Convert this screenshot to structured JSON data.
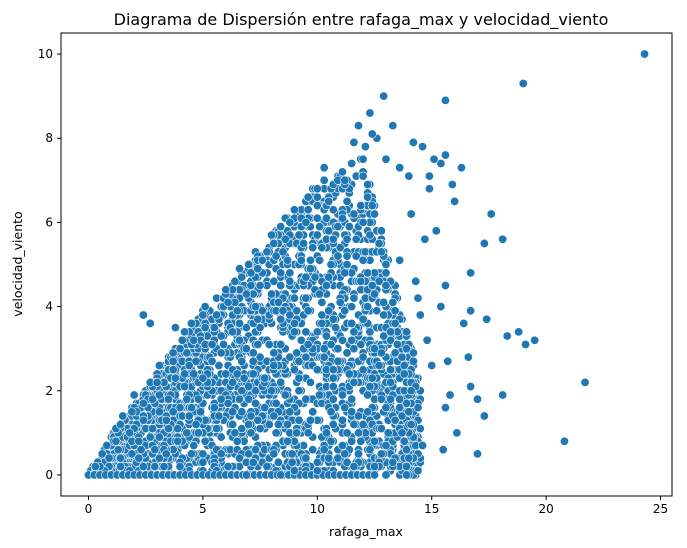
{
  "chart_data": {
    "type": "scatter",
    "title": "Diagrama de Dispersión entre rafaga_max y velocidad_viento",
    "xlabel": "rafaga_max",
    "ylabel": "velocidad_viento",
    "xlim": [
      -1.2,
      25.5
    ],
    "ylim": [
      -0.5,
      10.5
    ],
    "xticks": [
      "0",
      "5",
      "10",
      "15",
      "20",
      "25"
    ],
    "yticks": [
      "0",
      "2",
      "4",
      "6",
      "8",
      "10"
    ],
    "xtick_values": [
      0,
      5,
      10,
      15,
      20,
      25
    ],
    "ytick_values": [
      0,
      2,
      4,
      6,
      8,
      10
    ],
    "grid": false,
    "marker_color": "#1f77b4",
    "marker_edge_color": "#ffffff",
    "density_region": {
      "description": "dense cloud of points",
      "upper_edge": [
        [
          0,
          0
        ],
        [
          1.0,
          0.9
        ],
        [
          2.0,
          1.7
        ],
        [
          3.0,
          2.5
        ],
        [
          4.0,
          3.2
        ],
        [
          5.0,
          3.9
        ],
        [
          6.0,
          4.5
        ],
        [
          7.0,
          5.1
        ],
        [
          8.0,
          5.7
        ],
        [
          9.0,
          6.3
        ],
        [
          10.0,
          6.9
        ],
        [
          11.0,
          7.2
        ],
        [
          12.0,
          7.6
        ]
      ],
      "lower_edge": [
        [
          0,
          0
        ],
        [
          12.0,
          0.0
        ]
      ],
      "right_edge": [
        [
          12.0,
          7.6
        ],
        [
          13.0,
          7.0
        ],
        [
          13.5,
          6.0
        ],
        [
          14.0,
          5.0
        ],
        [
          14.5,
          4.0
        ],
        [
          15.0,
          3.0
        ],
        [
          14.8,
          2.0
        ],
        [
          14.0,
          1.0
        ],
        [
          12.0,
          0.5
        ]
      ]
    },
    "points": [
      [
        24.3,
        10.0
      ],
      [
        19.0,
        9.3
      ],
      [
        15.6,
        8.9
      ],
      [
        12.9,
        9.0
      ],
      [
        12.3,
        8.6
      ],
      [
        11.8,
        8.3
      ],
      [
        13.3,
        8.3
      ],
      [
        12.6,
        8.0
      ],
      [
        14.2,
        7.9
      ],
      [
        14.6,
        7.8
      ],
      [
        15.4,
        7.4
      ],
      [
        15.6,
        7.6
      ],
      [
        14.9,
        7.1
      ],
      [
        16.3,
        7.3
      ],
      [
        15.9,
        6.9
      ],
      [
        14.9,
        6.8
      ],
      [
        17.6,
        6.2
      ],
      [
        18.1,
        5.6
      ],
      [
        17.3,
        5.5
      ],
      [
        16.7,
        4.8
      ],
      [
        15.6,
        4.5
      ],
      [
        14.5,
        3.8
      ],
      [
        16.4,
        3.6
      ],
      [
        16.7,
        3.9
      ],
      [
        17.4,
        3.7
      ],
      [
        18.3,
        3.3
      ],
      [
        18.8,
        3.4
      ],
      [
        19.1,
        3.1
      ],
      [
        19.5,
        3.2
      ],
      [
        16.6,
        2.8
      ],
      [
        15.7,
        2.7
      ],
      [
        15.0,
        2.6
      ],
      [
        16.7,
        2.1
      ],
      [
        17.0,
        1.8
      ],
      [
        17.3,
        1.4
      ],
      [
        18.1,
        1.9
      ],
      [
        21.7,
        2.2
      ],
      [
        15.6,
        1.6
      ],
      [
        15.8,
        1.9
      ],
      [
        16.1,
        1.0
      ],
      [
        14.6,
        0.7
      ],
      [
        15.5,
        0.6
      ],
      [
        17.0,
        0.5
      ],
      [
        20.8,
        0.8
      ],
      [
        14.0,
        1.5
      ],
      [
        13.6,
        1.8
      ],
      [
        13.0,
        0.7
      ],
      [
        13.4,
        1.3
      ],
      [
        2.4,
        3.8
      ],
      [
        2.7,
        3.6
      ],
      [
        3.8,
        3.5
      ],
      [
        4.2,
        3.4
      ],
      [
        8.4,
        0.0
      ],
      [
        9.0,
        0.1
      ],
      [
        7.8,
        0.2
      ],
      [
        10.0,
        0.1
      ],
      [
        10.9,
        0.4
      ],
      [
        10.4,
        1.0
      ],
      [
        11.2,
        0.5
      ],
      [
        12.5,
        0.2
      ],
      [
        12.0,
        1.2
      ],
      [
        11.5,
        1.8
      ],
      [
        13.8,
        2.4
      ],
      [
        14.2,
        2.9
      ],
      [
        13.9,
        3.4
      ],
      [
        14.3,
        4.6
      ],
      [
        14.7,
        5.6
      ],
      [
        14.1,
        6.2
      ],
      [
        13.6,
        5.1
      ],
      [
        14.4,
        4.2
      ],
      [
        15.4,
        4.0
      ],
      [
        14.8,
        3.2
      ],
      [
        13.2,
        2.2
      ],
      [
        12.7,
        2.6
      ],
      [
        14.1,
        2.0
      ],
      [
        15.2,
        5.8
      ],
      [
        16.0,
        6.5
      ],
      [
        13.0,
        7.5
      ],
      [
        12.1,
        7.8
      ],
      [
        11.6,
        7.9
      ],
      [
        12.4,
        8.1
      ],
      [
        10.3,
        7.3
      ],
      [
        13.6,
        7.3
      ],
      [
        14.0,
        7.1
      ],
      [
        15.1,
        7.5
      ],
      [
        6.9,
        0.0
      ],
      [
        7.2,
        0.3
      ],
      [
        8.1,
        0.5
      ],
      [
        8.7,
        0.8
      ],
      [
        9.5,
        0.4
      ],
      [
        3.0,
        2.2
      ],
      [
        2.0,
        1.9
      ],
      [
        1.5,
        1.4
      ],
      [
        4.5,
        3.6
      ],
      [
        5.1,
        4.0
      ],
      [
        6.0,
        4.4
      ],
      [
        7.0,
        5.0
      ],
      [
        8.0,
        5.7
      ],
      [
        9.0,
        6.3
      ],
      [
        10.0,
        6.8
      ]
    ]
  }
}
